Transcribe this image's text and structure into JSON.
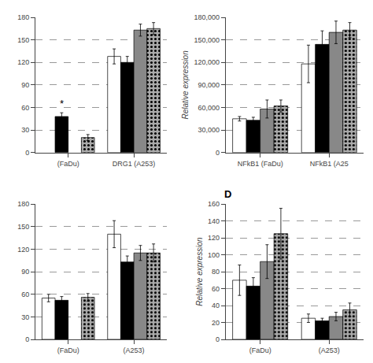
{
  "chart_data": [
    {
      "type": "bar",
      "categories": [
        "(FaDu)",
        "DRG1 (A253)"
      ],
      "series": [
        {
          "color": "white",
          "values": [
            null,
            128
          ],
          "errors": [
            null,
            10
          ]
        },
        {
          "color": "black",
          "values": [
            48,
            120
          ],
          "errors": [
            5,
            8
          ]
        },
        {
          "color": "#888888",
          "values": [
            null,
            163
          ],
          "errors": [
            null,
            8
          ]
        },
        {
          "color": "#aaaaaa",
          "marker": "dotted",
          "values": [
            20,
            165
          ],
          "errors": [
            4,
            8
          ]
        }
      ],
      "ylim": [
        0,
        180
      ],
      "yticks": [
        0,
        30,
        60,
        90,
        120,
        150,
        180
      ],
      "grid": true,
      "annotations": [
        {
          "text": "*",
          "category": "(FaDu)",
          "series": 1
        }
      ]
    },
    {
      "type": "bar",
      "categories": [
        "NFkB1 (FaDu)",
        "NFkB1 (A25"
      ],
      "ylabel": "Relative expression",
      "series": [
        {
          "color": "white",
          "values": [
            45000,
            118000
          ],
          "errors": [
            3000,
            25000
          ]
        },
        {
          "color": "black",
          "values": [
            43000,
            144000
          ],
          "errors": [
            4000,
            18000
          ]
        },
        {
          "color": "#888888",
          "values": [
            58000,
            160000
          ],
          "errors": [
            12000,
            15000
          ]
        },
        {
          "color": "#aaaaaa",
          "marker": "dotted",
          "values": [
            62000,
            163000
          ],
          "errors": [
            8000,
            10000
          ]
        }
      ],
      "ylim": [
        0,
        180000
      ],
      "yticks": [
        0,
        {
          "value": 30000,
          "label": "30,000"
        },
        {
          "value": 60000,
          "label": "60,000"
        },
        {
          "value": 90000,
          "label": "90,000"
        },
        {
          "value": 120000,
          "label": "120,000"
        },
        {
          "value": 150000,
          "label": "150,000"
        },
        {
          "value": 180000,
          "label": "180,000"
        }
      ],
      "grid": true
    },
    {
      "type": "bar",
      "categories": [
        "(FaDu)",
        "(A253)"
      ],
      "series": [
        {
          "color": "white",
          "values": [
            55,
            140
          ],
          "errors": [
            5,
            18
          ]
        },
        {
          "color": "black",
          "values": [
            52,
            103
          ],
          "errors": [
            5,
            8
          ]
        },
        {
          "color": "#888888",
          "values": [
            null,
            115
          ],
          "errors": [
            null,
            10
          ]
        },
        {
          "color": "#aaaaaa",
          "marker": "dotted",
          "values": [
            56,
            115
          ],
          "errors": [
            5,
            12
          ]
        }
      ],
      "ylim": [
        0,
        180
      ],
      "yticks": [
        0,
        30,
        60,
        90,
        120,
        150,
        180
      ],
      "grid": true
    },
    {
      "type": "bar",
      "label": "D",
      "categories": [
        "(FaDu)",
        "(A253)"
      ],
      "ylabel": "Relative expression",
      "series": [
        {
          "color": "white",
          "values": [
            70,
            25
          ],
          "errors": [
            18,
            5
          ]
        },
        {
          "color": "black",
          "values": [
            63,
            22
          ],
          "errors": [
            10,
            3
          ]
        },
        {
          "color": "#888888",
          "values": [
            92,
            27
          ],
          "errors": [
            20,
            5
          ]
        },
        {
          "color": "#aaaaaa",
          "marker": "dotted",
          "values": [
            125,
            35
          ],
          "errors": [
            30,
            8
          ]
        }
      ],
      "ylim": [
        0,
        160
      ],
      "yticks": [
        0,
        20,
        40,
        60,
        80,
        100,
        120,
        140,
        160
      ],
      "grid": true
    }
  ]
}
